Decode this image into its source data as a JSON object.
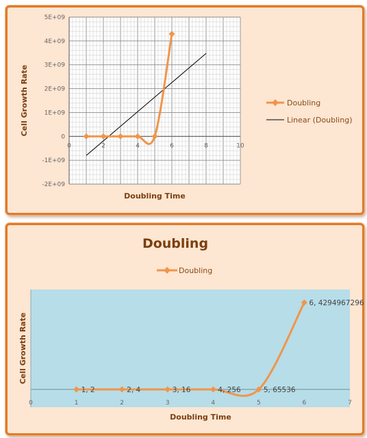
{
  "chart_data": [
    {
      "type": "scatter",
      "xlabel": "Doubling Time",
      "ylabel": "Cell Growth Rate",
      "xlim": [
        0,
        10
      ],
      "ylim": [
        -2000000000,
        5000000000
      ],
      "x_ticks": [
        "0",
        "2",
        "4",
        "6",
        "8",
        "10"
      ],
      "y_ticks": [
        "5E+09",
        "4E+09",
        "3E+09",
        "2E+09",
        "1E+09",
        "0",
        "-1E+09",
        "-2E+09"
      ],
      "grid": true,
      "legend_position": "right",
      "series": [
        {
          "name": "Doubling",
          "color": "#f0954a",
          "marker": "diamond",
          "smooth": true,
          "x": [
            1,
            2,
            3,
            4,
            5,
            6
          ],
          "y": [
            2,
            4,
            16,
            256,
            65536,
            4294967296
          ]
        },
        {
          "name": "Linear (Doubling)",
          "color": "#000000",
          "marker": "none",
          "trendline": true,
          "x": [
            1,
            8
          ],
          "y": [
            -800000000,
            3480000000
          ]
        }
      ]
    },
    {
      "type": "line",
      "title": "Doubling",
      "xlabel": "Doubling Time",
      "ylabel": "Cell Growth Rate",
      "xlim": [
        0,
        7
      ],
      "x_ticks": [
        "0",
        "1",
        "2",
        "3",
        "4",
        "5",
        "6",
        "7"
      ],
      "legend_position": "top",
      "plot_background": "#b7dde8",
      "series": [
        {
          "name": "Doubling",
          "color": "#f0954a",
          "marker": "diamond",
          "smooth": true,
          "x": [
            1,
            2,
            3,
            4,
            5,
            6
          ],
          "y": [
            2,
            4,
            16,
            256,
            65536,
            4294967296
          ],
          "labels": [
            "1, 2",
            "2, 4",
            "3, 16",
            "4, 256",
            "5, 65536",
            "6, 4294967296"
          ]
        }
      ]
    }
  ]
}
